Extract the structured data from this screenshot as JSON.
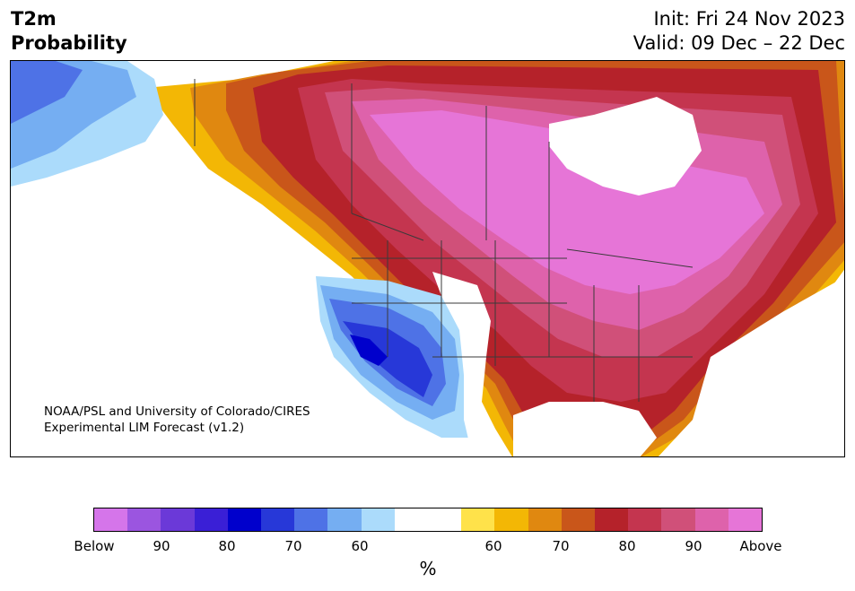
{
  "header": {
    "title_line1": "T2m",
    "title_line2": "Probability",
    "init_label": "Init: Fri 24 Nov 2023",
    "valid_label": "Valid: 09 Dec – 22 Dec"
  },
  "credit": {
    "line1": "NOAA/PSL and University of Colorado/CIRES",
    "line2": "Experimental LIM Forecast (v1.2)"
  },
  "colorbar": {
    "unit": "%",
    "colors": [
      "#d575ea",
      "#9b55e0",
      "#6b39d8",
      "#3a1fd6",
      "#0000cc",
      "#2738d8",
      "#4e72e6",
      "#75aef2",
      "#abdbfb",
      "#ffffff",
      "#ffffff",
      "#ffe24a",
      "#f3b705",
      "#e08810",
      "#c9561a",
      "#b5222a",
      "#c4354f",
      "#d05079",
      "#de62ab",
      "#e675d7"
    ],
    "tick_labels": [
      "Below",
      "90",
      "80",
      "70",
      "60",
      "60",
      "70",
      "80",
      "90",
      "Above"
    ]
  },
  "map_colors": {
    "above_max": "#e675d7",
    "above_90": "#de62ab",
    "above_85": "#d05079",
    "above_80": "#c4354f",
    "above_75": "#b5222a",
    "above_70": "#c9561a",
    "above_65": "#e08810",
    "above_60": "#f3b705",
    "above_55": "#ffe24a",
    "neutral": "#ffffff",
    "below_55": "#abdbfb",
    "below_60": "#75aef2",
    "below_65": "#4e72e6",
    "below_70": "#2738d8",
    "below_75": "#0000cc",
    "border": "#3a3a3a"
  }
}
